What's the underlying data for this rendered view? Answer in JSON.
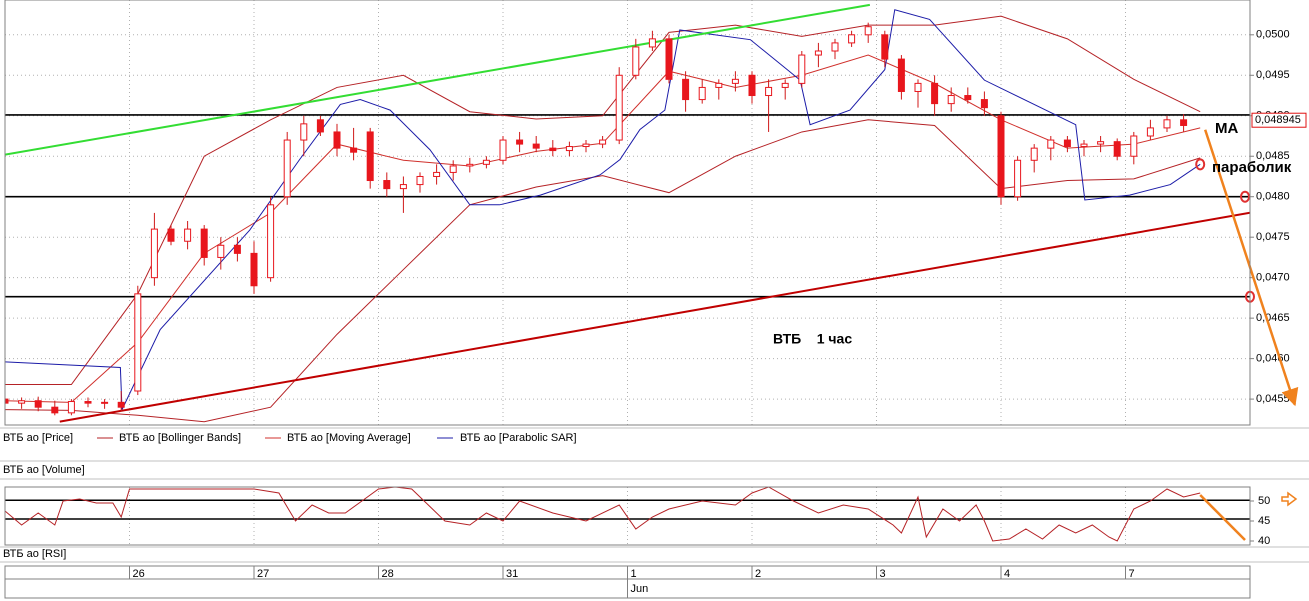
{
  "chart_data": [
    {
      "type": "candlestick",
      "name": "ВТБ ао [Price]",
      "up_color": "#ffffff",
      "down_color": "#e8161d",
      "wick_color": "#d01818",
      "xlim": [
        0,
        150
      ],
      "ylim": [
        0.04518,
        0.05043
      ],
      "xticks": [
        {
          "value": 15,
          "label": "26"
        },
        {
          "value": 30,
          "label": "27"
        },
        {
          "value": 45,
          "label": "28"
        },
        {
          "value": 60,
          "label": "31"
        },
        {
          "value": 75,
          "label": "1"
        },
        {
          "value": 90,
          "label": "2"
        },
        {
          "value": 105,
          "label": "3"
        },
        {
          "value": 120,
          "label": "4"
        },
        {
          "value": 135,
          "label": "7"
        }
      ],
      "month_ticks": [
        {
          "value": 75,
          "label": "Jun"
        }
      ],
      "yticks": [
        {
          "value": 0.0455,
          "label": "0,0455"
        },
        {
          "value": 0.046,
          "label": "0,0460"
        },
        {
          "value": 0.0465,
          "label": "0,0465"
        },
        {
          "value": 0.047,
          "label": "0,0470"
        },
        {
          "value": 0.0475,
          "label": "0,0475"
        },
        {
          "value": 0.048,
          "label": "0,0480"
        },
        {
          "value": 0.0485,
          "label": "0,0485"
        },
        {
          "value": 0.049,
          "label": "0,0490"
        },
        {
          "value": 0.0495,
          "label": "0,0495"
        },
        {
          "value": 0.05,
          "label": "0,0500"
        }
      ],
      "grid": true,
      "x": [
        0,
        2,
        4,
        6,
        8,
        10,
        12,
        14,
        16,
        18,
        20,
        22,
        24,
        26,
        28,
        30,
        32,
        34,
        36,
        38,
        40,
        42,
        44,
        46,
        48,
        50,
        52,
        54,
        56,
        58,
        60,
        62,
        64,
        66,
        68,
        70,
        72,
        74,
        76,
        78,
        80,
        82,
        84,
        86,
        88,
        90,
        92,
        94,
        96,
        98,
        100,
        102,
        104,
        106,
        108,
        110,
        112,
        114,
        116,
        118,
        120,
        122,
        124,
        126,
        128,
        130,
        132,
        134,
        136,
        138,
        140,
        142
      ],
      "open": [
        0.0455,
        0.04545,
        0.04548,
        0.0454,
        0.04533,
        0.04547,
        0.04545,
        0.04546,
        0.0456,
        0.047,
        0.0476,
        0.04745,
        0.0476,
        0.04725,
        0.0474,
        0.0473,
        0.047,
        0.048,
        0.0487,
        0.04895,
        0.0488,
        0.0486,
        0.0488,
        0.0482,
        0.0481,
        0.04815,
        0.04825,
        0.0483,
        0.04838,
        0.0484,
        0.04845,
        0.0487,
        0.04865,
        0.0486,
        0.04857,
        0.04862,
        0.04865,
        0.0487,
        0.0495,
        0.04985,
        0.04995,
        0.04945,
        0.0492,
        0.04935,
        0.0494,
        0.0495,
        0.04925,
        0.04935,
        0.0494,
        0.04975,
        0.0498,
        0.0499,
        0.05,
        0.05,
        0.0497,
        0.0493,
        0.0494,
        0.04915,
        0.04925,
        0.0492,
        0.049,
        0.048,
        0.04845,
        0.0486,
        0.0487,
        0.04862,
        0.04865,
        0.04868,
        0.0485,
        0.04875,
        0.04885,
        0.04895
      ],
      "high": [
        0.04555,
        0.04552,
        0.04553,
        0.04548,
        0.0455,
        0.04552,
        0.0455,
        0.0456,
        0.0469,
        0.0478,
        0.04765,
        0.0477,
        0.04765,
        0.0475,
        0.0475,
        0.04745,
        0.048,
        0.0488,
        0.049,
        0.049,
        0.0489,
        0.04885,
        0.04885,
        0.0483,
        0.04825,
        0.0483,
        0.0484,
        0.04845,
        0.04848,
        0.0485,
        0.04875,
        0.0488,
        0.04875,
        0.0487,
        0.04868,
        0.0487,
        0.04875,
        0.0496,
        0.04995,
        0.05005,
        0.05,
        0.04955,
        0.04945,
        0.04945,
        0.04955,
        0.04955,
        0.04945,
        0.04945,
        0.0498,
        0.0499,
        0.04995,
        0.05005,
        0.05015,
        0.05005,
        0.04975,
        0.04945,
        0.0495,
        0.04935,
        0.04935,
        0.0493,
        0.04905,
        0.0485,
        0.04865,
        0.04875,
        0.04875,
        0.0487,
        0.04875,
        0.04872,
        0.0488,
        0.04895,
        0.049,
        0.04902
      ],
      "low": [
        0.0454,
        0.04538,
        0.04535,
        0.0453,
        0.0453,
        0.0454,
        0.04538,
        0.04535,
        0.04555,
        0.0469,
        0.0474,
        0.04735,
        0.04715,
        0.0471,
        0.0472,
        0.0468,
        0.04695,
        0.0479,
        0.0485,
        0.04875,
        0.0485,
        0.04845,
        0.0481,
        0.048,
        0.0478,
        0.04805,
        0.04815,
        0.0482,
        0.0483,
        0.04835,
        0.0484,
        0.04855,
        0.04855,
        0.0485,
        0.0485,
        0.04855,
        0.0486,
        0.04865,
        0.04945,
        0.0498,
        0.0494,
        0.04905,
        0.04915,
        0.0492,
        0.0493,
        0.04915,
        0.0488,
        0.0492,
        0.04935,
        0.0496,
        0.0497,
        0.04985,
        0.0499,
        0.0496,
        0.0492,
        0.0491,
        0.049,
        0.04905,
        0.04915,
        0.049,
        0.0479,
        0.04795,
        0.0483,
        0.04845,
        0.04855,
        0.0485,
        0.04855,
        0.04845,
        0.0484,
        0.0487,
        0.0488,
        0.0488
      ],
      "close": [
        0.04545,
        0.04548,
        0.0454,
        0.04533,
        0.04547,
        0.04545,
        0.04546,
        0.0454,
        0.0468,
        0.0476,
        0.04745,
        0.0476,
        0.04725,
        0.0474,
        0.0473,
        0.0469,
        0.0479,
        0.0487,
        0.0489,
        0.0488,
        0.0486,
        0.04855,
        0.0482,
        0.0481,
        0.04815,
        0.04825,
        0.0483,
        0.04838,
        0.0484,
        0.04845,
        0.0487,
        0.04865,
        0.0486,
        0.04857,
        0.04862,
        0.04865,
        0.0487,
        0.0495,
        0.04985,
        0.04995,
        0.04945,
        0.0492,
        0.04935,
        0.0494,
        0.04945,
        0.04925,
        0.04935,
        0.0494,
        0.04975,
        0.0498,
        0.0499,
        0.05,
        0.0501,
        0.0497,
        0.0493,
        0.0494,
        0.04915,
        0.04925,
        0.0492,
        0.0491,
        0.048,
        0.04845,
        0.0486,
        0.0487,
        0.04862,
        0.04865,
        0.04868,
        0.0485,
        0.04875,
        0.04885,
        0.04895,
        0.04888
      ],
      "bollinger": {
        "name": "ВТБ ао [Bollinger Bands]",
        "color": "#b52226",
        "x": [
          0,
          8,
          16,
          24,
          32,
          40,
          48,
          56,
          64,
          72,
          80,
          88,
          96,
          104,
          112,
          120,
          128,
          136,
          144
        ],
        "upper": [
          0.04568,
          0.04568,
          0.0468,
          0.0485,
          0.04895,
          0.04935,
          0.0495,
          0.04905,
          0.04896,
          0.049,
          0.05003,
          0.05012,
          0.04998,
          0.05012,
          0.05012,
          0.05023,
          0.04995,
          0.04945,
          0.04905
        ],
        "lower": [
          0.04537,
          0.04536,
          0.0453,
          0.04522,
          0.0454,
          0.0463,
          0.0471,
          0.0479,
          0.04812,
          0.04826,
          0.04805,
          0.0485,
          0.0488,
          0.04895,
          0.04888,
          0.0481,
          0.0482,
          0.04822,
          0.04848
        ]
      },
      "moving_average": {
        "name": "ВТБ ао [Moving Average]",
        "color": "#d0302c",
        "x": [
          0,
          8,
          16,
          24,
          32,
          40,
          48,
          56,
          64,
          72,
          80,
          88,
          96,
          104,
          112,
          120,
          128,
          136,
          144
        ],
        "values": [
          0.04548,
          0.04546,
          0.0462,
          0.0473,
          0.0478,
          0.04865,
          0.04845,
          0.04838,
          0.04856,
          0.04866,
          0.04955,
          0.04935,
          0.0495,
          0.04975,
          0.0494,
          0.04895,
          0.0486,
          0.04865,
          0.04885
        ]
      },
      "sar": {
        "name": "ВТБ ао [Parabolic SAR]",
        "color": "#1c1ca8",
        "x": [
          0,
          13.9,
          14.1,
          18.7,
          29.5,
          35.5,
          40.4,
          42.8,
          46.4,
          51.2,
          56,
          59.6,
          64.5,
          71.7,
          74.1,
          76.5,
          79.5,
          81.3,
          89.8,
          95.8,
          97,
          101.8,
          106,
          107.2,
          111.4,
          118,
          129,
          130.1,
          135.5,
          140.4,
          144
        ],
        "values": [
          0.04596,
          0.04589,
          0.04537,
          0.04636,
          0.04759,
          0.04846,
          0.04914,
          0.0492,
          0.04907,
          0.04858,
          0.0479,
          0.0479,
          0.04802,
          0.04827,
          0.04846,
          0.04883,
          0.04907,
          0.05006,
          0.04994,
          0.04944,
          0.04889,
          0.04907,
          0.04957,
          0.05031,
          0.05019,
          0.04944,
          0.04889,
          0.04796,
          0.04802,
          0.04815,
          0.0484
        ]
      },
      "levels": {
        "color": "#000000",
        "values": [
          0.04901,
          0.048,
          0.046765
        ]
      },
      "trendlines": [
        {
          "color": "#33dd33",
          "x": [
            0,
            104.2
          ],
          "values": [
            0.048519,
            0.05037
          ]
        },
        {
          "color": "#c00000",
          "x": [
            6.6,
            150
          ],
          "values": [
            0.045222,
            0.047802
          ]
        }
      ],
      "forecast": {
        "color": "#f0821e",
        "x": [
          144.6,
          155.4
        ],
        "values": [
          0.048827,
          0.045432
        ]
      },
      "markers": {
        "color": "#e03030",
        "x": [
          144,
          149.4,
          150
        ],
        "values": [
          0.0484,
          0.048,
          0.046765
        ]
      },
      "last_price": {
        "value": 0.048945,
        "label": "0,048945",
        "color": "#e01010"
      },
      "annotations": [
        "MA",
        "параболик",
        "ВТБ    1 час"
      ]
    },
    {
      "type": "line",
      "title": "ВТБ ао [RSI]",
      "color": "#b52226",
      "xlim": [
        0,
        150
      ],
      "ylim": [
        39,
        53.5
      ],
      "yticks": [
        50,
        45,
        40
      ],
      "x": [
        0,
        2,
        4,
        6,
        7,
        9,
        11,
        13,
        14,
        15,
        20,
        26,
        30,
        33,
        35,
        37,
        39,
        41,
        43,
        45,
        47,
        49,
        51,
        53,
        56,
        58,
        60,
        62,
        66,
        70,
        74,
        76,
        78,
        80,
        84,
        88,
        90,
        92,
        95,
        98,
        101,
        104,
        107,
        108,
        110,
        111,
        113,
        115,
        117,
        118,
        119,
        121,
        123,
        125,
        127,
        129,
        131,
        133,
        134,
        136,
        138,
        140,
        142,
        144
      ],
      "values": [
        47.5,
        44,
        47,
        44,
        50,
        50.5,
        49.5,
        49.5,
        46,
        53,
        53,
        53,
        53,
        52,
        45,
        49,
        47,
        47,
        50,
        53,
        53.5,
        53,
        49,
        45,
        44,
        47,
        45,
        50,
        47,
        45,
        49,
        43,
        46,
        48,
        50,
        49,
        52,
        53.5,
        50,
        47,
        49,
        48,
        44,
        42,
        51,
        41,
        48,
        45,
        49,
        45,
        40,
        40.5,
        43,
        40.5,
        44,
        42,
        44,
        41,
        40,
        48,
        50,
        53,
        51,
        52
      ],
      "levels": {
        "color": "#000000",
        "values": [
          50.2,
          45.5
        ]
      },
      "forecast": {
        "color": "#f0821e",
        "x": [
          144,
          149.4
        ],
        "values": [
          51.5,
          40.25
        ]
      }
    }
  ],
  "volume_panel": {
    "title": "ВТБ ао [Volume]"
  }
}
